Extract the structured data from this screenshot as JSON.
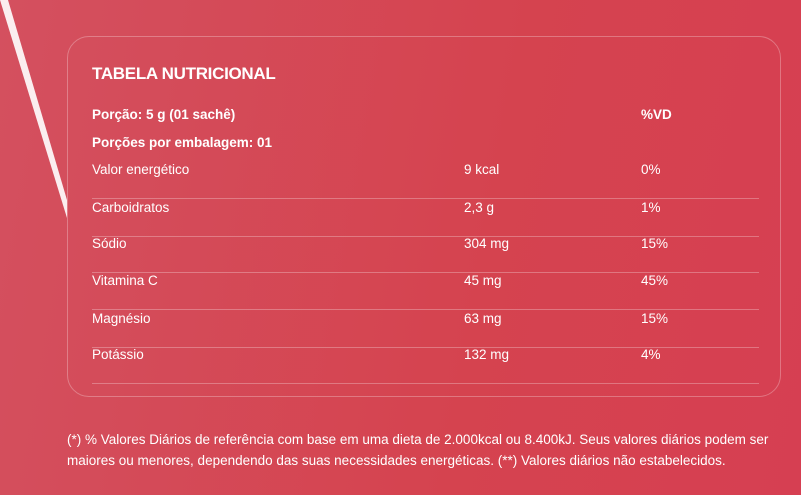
{
  "table": {
    "title": "TABELA NUTRICIONAL",
    "portion": "Porção: 5 g (01 sachê)",
    "vd_header": "%VD",
    "portions_per_package": "Porções por embalagem: 01",
    "rows": [
      {
        "name": "Valor energético",
        "amount": "9 kcal",
        "vd": "0%"
      },
      {
        "name": "Carboidratos",
        "amount": "2,3 g",
        "vd": "1%"
      },
      {
        "name": "Sódio",
        "amount": "304 mg",
        "vd": "15%"
      },
      {
        "name": "Vitamina C",
        "amount": "45 mg",
        "vd": "45%"
      },
      {
        "name": "Magnésio",
        "amount": "63 mg",
        "vd": "15%"
      },
      {
        "name": "Potássio",
        "amount": "132 mg",
        "vd": "4%"
      }
    ]
  },
  "footnote": "(*) % Valores Diários de referência com base em uma dieta de 2.000kcal ou 8.400kJ. Seus valores diários podem ser maiores ou menores, dependendo das suas necessidades energéticas. (**) Valores diários não estabelecidos.",
  "colors": {
    "background": "#d5475a",
    "text": "#ffffff"
  }
}
